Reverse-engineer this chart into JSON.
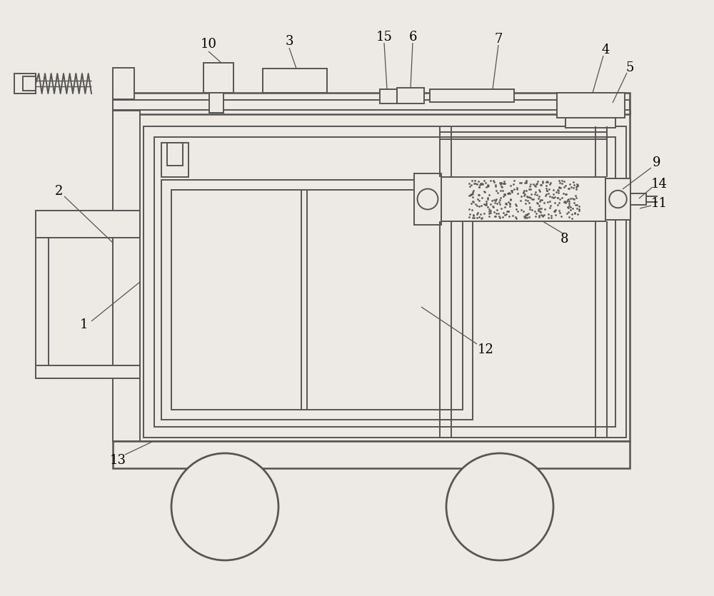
{
  "bg_color": "#ede9e4",
  "line_color": "#555555",
  "lw": 1.4,
  "fig_width": 10.0,
  "fig_height": 8.35
}
